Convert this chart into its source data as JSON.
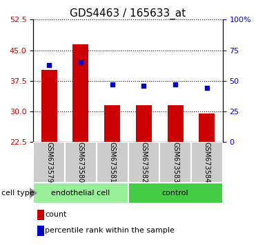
{
  "title": "GDS4463 / 165633_at",
  "samples": [
    "GSM673579",
    "GSM673580",
    "GSM673581",
    "GSM673582",
    "GSM673583",
    "GSM673584"
  ],
  "counts": [
    40.2,
    46.5,
    31.5,
    31.5,
    31.5,
    29.5
  ],
  "percentiles": [
    63.0,
    65.0,
    47.0,
    46.0,
    47.0,
    44.0
  ],
  "ylim_left": [
    22.5,
    52.5
  ],
  "yticks_left": [
    22.5,
    30.0,
    37.5,
    45.0,
    52.5
  ],
  "ylim_right": [
    0,
    100
  ],
  "yticks_right": [
    0,
    25,
    50,
    75,
    100
  ],
  "bar_color": "#cc0000",
  "dot_color": "#0000cc",
  "bar_width": 0.5,
  "groups": [
    {
      "label": "endothelial cell",
      "indices": [
        0,
        1,
        2
      ],
      "color": "#99ee99"
    },
    {
      "label": "control",
      "indices": [
        3,
        4,
        5
      ],
      "color": "#44cc44"
    }
  ],
  "cell_type_label": "cell type",
  "legend_items": [
    {
      "label": "count",
      "color": "#cc0000"
    },
    {
      "label": "percentile rank within the sample",
      "color": "#0000cc"
    }
  ],
  "grid_linestyle": ":",
  "grid_linewidth": 0.8,
  "title_fontsize": 11,
  "tick_fontsize": 8,
  "tick_label_color_left": "#cc0000",
  "tick_label_color_right": "#0000cc",
  "sample_bg": "#cccccc",
  "sample_fontsize": 7
}
